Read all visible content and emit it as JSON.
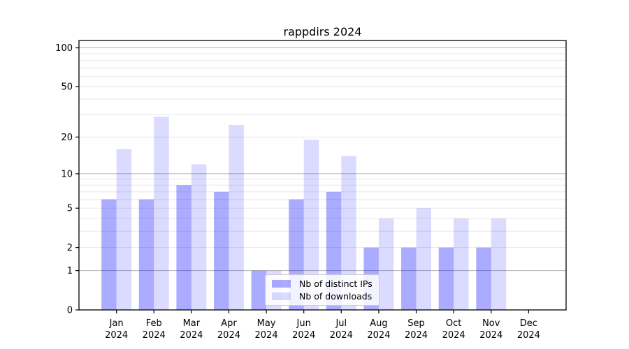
{
  "chart_data": {
    "type": "bar",
    "title": "rappdirs 2024",
    "categories": [
      "Jan 2024",
      "Feb 2024",
      "Mar 2024",
      "Apr 2024",
      "May 2024",
      "Jun 2024",
      "Jul 2024",
      "Aug 2024",
      "Sep 2024",
      "Oct 2024",
      "Nov 2024",
      "Dec 2024"
    ],
    "series": [
      {
        "name": "Nb of distinct IPs",
        "color": "rgba(0,0,255,0.33)",
        "values": [
          6,
          6,
          8,
          7,
          1,
          6,
          7,
          2,
          2,
          2,
          2,
          0
        ]
      },
      {
        "name": "Nb of downloads",
        "color": "rgba(0,0,255,0.14)",
        "values": [
          16,
          29,
          12,
          25,
          1,
          19,
          14,
          4,
          5,
          4,
          4,
          0
        ]
      }
    ],
    "xlabel": "",
    "ylabel": "",
    "yscale": "log10(1+y)",
    "ylim": [
      0,
      114
    ],
    "yticks": [
      0,
      1,
      2,
      5,
      10,
      20,
      50,
      100
    ],
    "major_gridlines": [
      1,
      10,
      100
    ],
    "minor_gridlines": [
      2,
      3,
      4,
      5,
      6,
      7,
      8,
      9,
      20,
      30,
      40,
      50,
      60,
      70,
      80,
      90
    ],
    "grid": true,
    "legend_position": "lower center inside plot",
    "colors": {
      "axis": "#000000",
      "grid_major": "#b3b3b3",
      "grid_minor": "#e8e8e8",
      "background": "#ffffff",
      "legend_border": "#cccccc"
    }
  }
}
